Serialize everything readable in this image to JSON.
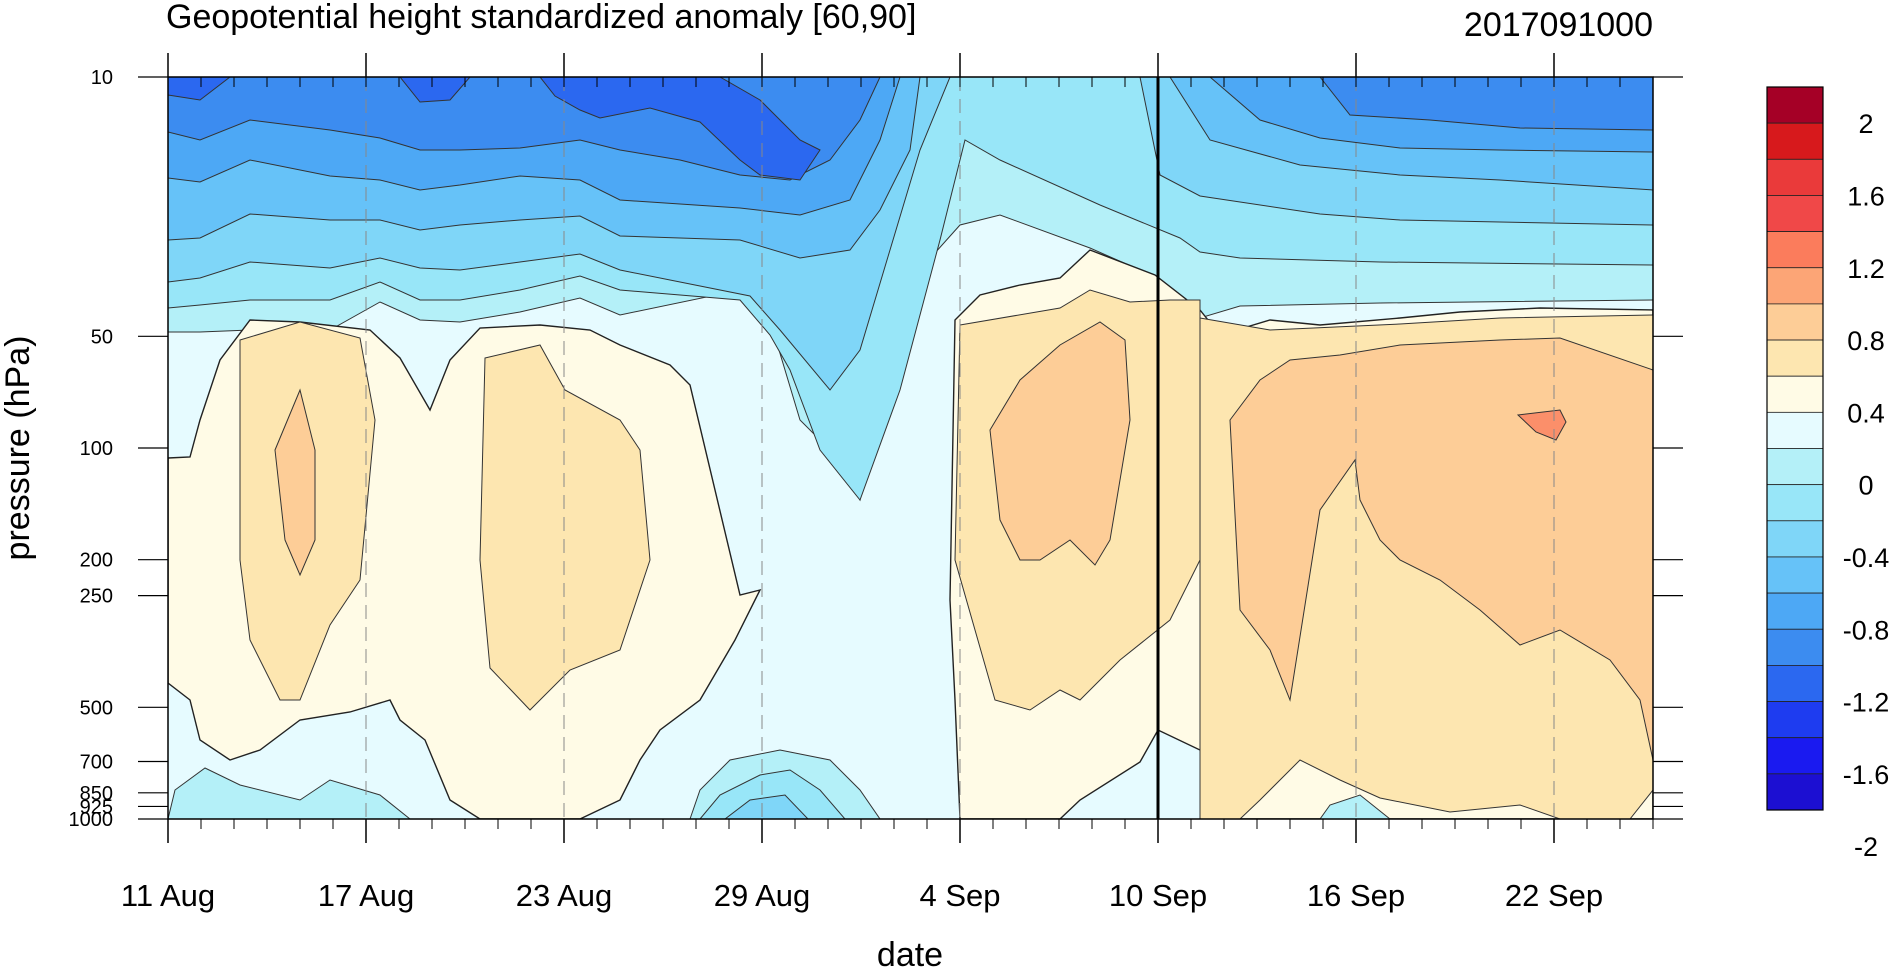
{
  "chart_data": {
    "type": "heatmap",
    "title": "Geopotential height standardized anomaly [60,90]",
    "init_time": "2017091000",
    "xlabel": "date",
    "ylabel": "pressure (hPa)",
    "x_ticks": [
      "11 Aug",
      "17 Aug",
      "23 Aug",
      "29 Aug",
      "4 Sep",
      "10 Sep",
      "16 Sep",
      "22 Sep"
    ],
    "y_ticks": [
      "10",
      "50",
      "100",
      "200",
      "250",
      "500",
      "700",
      "850",
      "925",
      "1000"
    ],
    "y_scale": "log",
    "y_range": [
      1000,
      10
    ],
    "analysis_line": "10 Sep",
    "colorbar": {
      "labels": [
        "2",
        "1.6",
        "1.2",
        "0.8",
        "0.4",
        "0",
        "-0.4",
        "-0.8",
        "-1.2",
        "-1.6",
        "-2"
      ],
      "colors": [
        "#a50026",
        "#d7191c",
        "#ea3a3a",
        "#f04848",
        "#fb7c5c",
        "#fca576",
        "#fdcd97",
        "#fde6b0",
        "#fffbe6",
        "#e6fbff",
        "#b4f0f8",
        "#98e6f8",
        "#7fd6f8",
        "#66c2f8",
        "#4da8f5",
        "#3c8cf0",
        "#2b68f0",
        "#1e3cf0",
        "#1a1af0",
        "#1c0fd2"
      ]
    },
    "anomaly_regions": [
      {
        "period": "11 Aug - 30 Aug",
        "levels": "10-40 hPa",
        "sign": "negative",
        "min": -1.6
      },
      {
        "period": "13 Aug - 17 Aug",
        "levels": "50-500 hPa",
        "sign": "positive",
        "max": 0.8
      },
      {
        "period": "20 Aug - 26 Aug",
        "levels": "50-500 hPa",
        "sign": "positive",
        "max": 0.4
      },
      {
        "period": "4 Sep - 10 Sep",
        "levels": "50-500 hPa",
        "sign": "positive",
        "max": 0.8
      },
      {
        "period": "13 Sep - 25 Sep",
        "levels": "50-1000 hPa",
        "sign": "positive",
        "max": 1.2
      },
      {
        "period": "11 Sep - 25 Sep",
        "levels": "10-40 hPa",
        "sign": "negative",
        "min": -0.8
      }
    ]
  }
}
